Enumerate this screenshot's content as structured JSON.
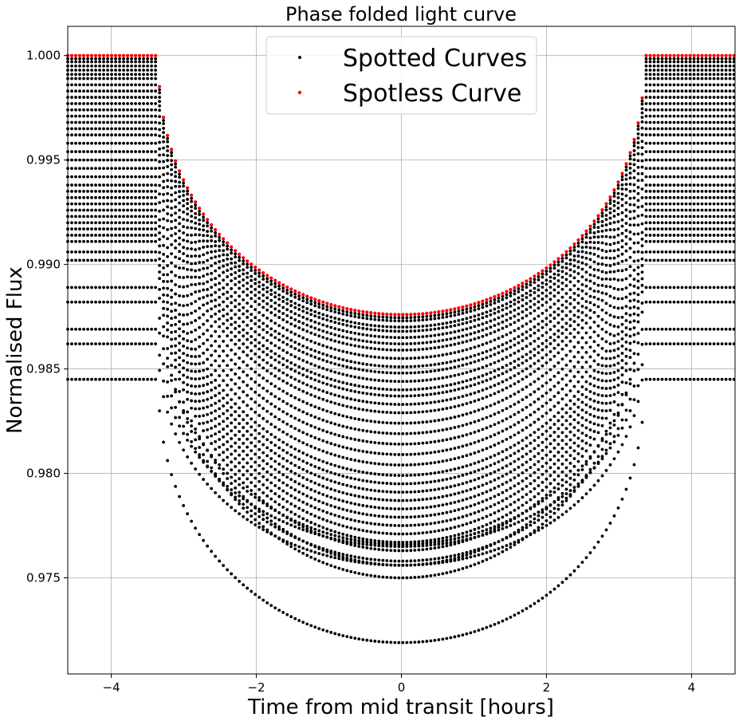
{
  "chart_data": {
    "type": "scatter",
    "title": "Phase folded light curve",
    "xlabel": "Time from mid transit [hours]",
    "ylabel": "Normalised Flux",
    "xlim": [
      -4.6,
      4.6
    ],
    "ylim": [
      0.9704,
      1.0014
    ],
    "xticks": [
      -4,
      -2,
      0,
      2,
      4
    ],
    "yticks": [
      0.975,
      0.98,
      0.985,
      0.99,
      0.995,
      1.0
    ],
    "xtick_labels": [
      "−4",
      "−2",
      "0",
      "2",
      "4"
    ],
    "ytick_labels": [
      "0.975",
      "0.980",
      "0.985",
      "0.990",
      "0.995",
      "1.000"
    ],
    "grid": true,
    "legend_position": "top-center",
    "transit": {
      "ingress_start": -3.35,
      "egress_end": 3.35,
      "spotless_depth": 0.0124,
      "limb_darkening_exponent": 0.45
    },
    "series": [
      {
        "name": "Spotted Curves",
        "color": "#000000",
        "marker": "dot",
        "point_step": 0.055,
        "curves": [
          {
            "baseline": 0.99985,
            "depth": 0.0124
          },
          {
            "baseline": 0.9997,
            "depth": 0.0124
          },
          {
            "baseline": 0.9995,
            "depth": 0.0125
          },
          {
            "baseline": 0.9993,
            "depth": 0.0125
          },
          {
            "baseline": 0.9991,
            "depth": 0.0126
          },
          {
            "baseline": 0.9989,
            "depth": 0.0127
          },
          {
            "baseline": 0.9986,
            "depth": 0.0127
          },
          {
            "baseline": 0.9983,
            "depth": 0.0128
          },
          {
            "baseline": 0.998,
            "depth": 0.0129
          },
          {
            "baseline": 0.9977,
            "depth": 0.0129
          },
          {
            "baseline": 0.9974,
            "depth": 0.013
          },
          {
            "baseline": 0.9971,
            "depth": 0.0131
          },
          {
            "baseline": 0.9968,
            "depth": 0.0131
          },
          {
            "baseline": 0.9965,
            "depth": 0.0132
          },
          {
            "baseline": 0.9962,
            "depth": 0.0133
          },
          {
            "baseline": 0.9958,
            "depth": 0.0134
          },
          {
            "baseline": 0.9954,
            "depth": 0.0135
          },
          {
            "baseline": 0.995,
            "depth": 0.0136
          },
          {
            "baseline": 0.9946,
            "depth": 0.0137
          },
          {
            "baseline": 0.9942,
            "depth": 0.0138
          },
          {
            "baseline": 0.9938,
            "depth": 0.0139
          },
          {
            "baseline": 0.9935,
            "depth": 0.014
          },
          {
            "baseline": 0.9932,
            "depth": 0.0141
          },
          {
            "baseline": 0.9929,
            "depth": 0.0142
          },
          {
            "baseline": 0.9926,
            "depth": 0.0143
          },
          {
            "baseline": 0.9923,
            "depth": 0.0144
          },
          {
            "baseline": 0.992,
            "depth": 0.0145
          },
          {
            "baseline": 0.9917,
            "depth": 0.0146
          },
          {
            "baseline": 0.9914,
            "depth": 0.0147
          },
          {
            "baseline": 0.9911,
            "depth": 0.0148
          },
          {
            "baseline": 0.9906,
            "depth": 0.015
          },
          {
            "baseline": 0.9902,
            "depth": 0.0152
          },
          {
            "baseline": 0.9889,
            "depth": 0.0123
          },
          {
            "baseline": 0.9882,
            "depth": 0.0124
          },
          {
            "baseline": 0.9869,
            "depth": 0.0104
          },
          {
            "baseline": 0.9862,
            "depth": 0.0106
          },
          {
            "baseline": 0.9845,
            "depth": 0.0126
          }
        ]
      },
      {
        "name": "Spotless Curve",
        "color": "#ff0000",
        "marker": "dot",
        "point_step": 0.055,
        "curves": [
          {
            "baseline": 1.0,
            "depth": 0.0124
          }
        ]
      }
    ]
  }
}
